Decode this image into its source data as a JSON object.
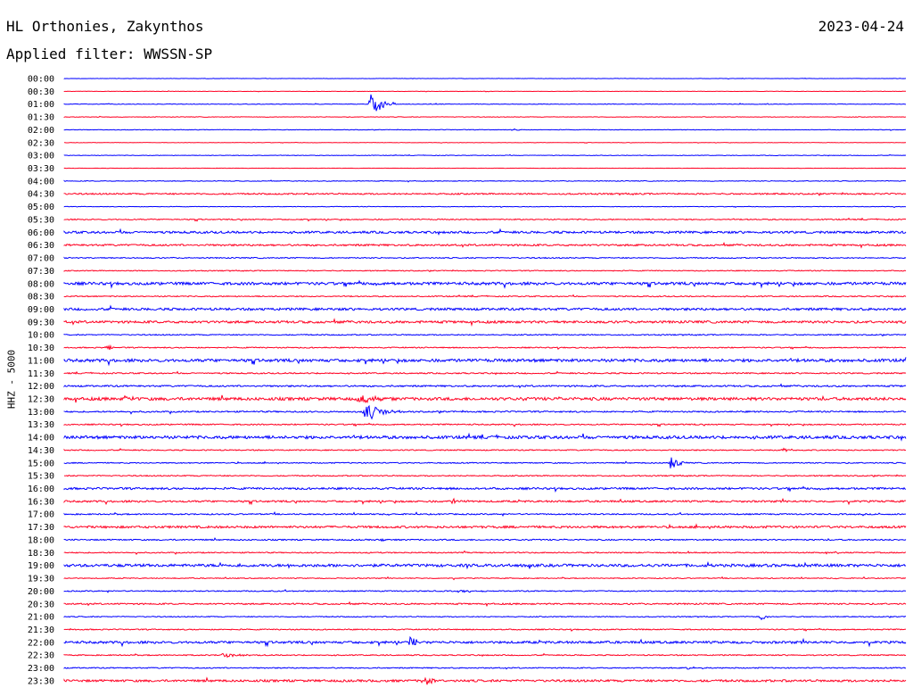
{
  "header": {
    "station": "HL Orthonies, Zakynthos",
    "date": "2023-04-24",
    "filter": "Applied filter: WWSSN-SP"
  },
  "channel_label": "HHZ - 5000",
  "colors": {
    "even_hour": "#0000ff",
    "half_hour": "#ff0022",
    "text": "#000000"
  },
  "chart_data": {
    "type": "line",
    "kind": "helicorder",
    "rows": [
      "00:00",
      "00:30",
      "01:00",
      "01:30",
      "02:00",
      "02:30",
      "03:00",
      "03:30",
      "04:00",
      "04:30",
      "05:00",
      "05:30",
      "06:00",
      "06:30",
      "07:00",
      "07:30",
      "08:00",
      "08:30",
      "09:00",
      "09:30",
      "10:00",
      "10:30",
      "11:00",
      "11:30",
      "12:00",
      "12:30",
      "13:00",
      "13:30",
      "14:00",
      "14:30",
      "15:00",
      "15:30",
      "16:00",
      "16:30",
      "17:00",
      "17:30",
      "18:00",
      "18:30",
      "19:00",
      "19:30",
      "20:00",
      "20:30",
      "21:00",
      "21:30",
      "22:00",
      "22:30",
      "23:00",
      "23:30"
    ],
    "row_minutes": 30,
    "noise_level": [
      0.2,
      0.2,
      0.3,
      0.3,
      0.3,
      0.2,
      0.3,
      0.2,
      0.4,
      0.8,
      0.3,
      0.6,
      1.2,
      1.0,
      0.6,
      0.5,
      1.5,
      0.6,
      1.3,
      1.3,
      0.6,
      0.6,
      1.6,
      0.7,
      0.9,
      1.6,
      0.8,
      0.7,
      1.6,
      0.6,
      0.6,
      0.6,
      1.1,
      1.0,
      0.7,
      1.2,
      0.7,
      0.6,
      1.5,
      0.5,
      0.6,
      0.8,
      0.5,
      0.6,
      1.3,
      0.6,
      0.6,
      1.2
    ],
    "events": [
      {
        "row": 2,
        "minute": 10.9,
        "amplitude": 22,
        "duration_min": 0.8
      },
      {
        "row": 2,
        "minute": 11.7,
        "amplitude": 3,
        "duration_min": 0.3
      },
      {
        "row": 4,
        "minute": 16.0,
        "amplitude": 2,
        "duration_min": 0.5
      },
      {
        "row": 21,
        "minute": 1.5,
        "amplitude": 6,
        "duration_min": 0.4
      },
      {
        "row": 25,
        "minute": 2.1,
        "amplitude": 6,
        "duration_min": 0.5
      },
      {
        "row": 25,
        "minute": 10.5,
        "amplitude": 7,
        "duration_min": 1.2
      },
      {
        "row": 26,
        "minute": 10.7,
        "amplitude": 12,
        "duration_min": 1.5
      },
      {
        "row": 29,
        "minute": 25.6,
        "amplitude": 3,
        "duration_min": 0.6
      },
      {
        "row": 30,
        "minute": 21.6,
        "amplitude": 10,
        "duration_min": 0.6
      },
      {
        "row": 33,
        "minute": 13.8,
        "amplitude": 3,
        "duration_min": 0.8
      },
      {
        "row": 36,
        "minute": 11.3,
        "amplitude": 2,
        "duration_min": 0.3
      },
      {
        "row": 40,
        "minute": 14.0,
        "amplitude": 2,
        "duration_min": 1.5
      },
      {
        "row": 42,
        "minute": 24.8,
        "amplitude": 7,
        "duration_min": 0.5
      },
      {
        "row": 44,
        "minute": 12.3,
        "amplitude": 13,
        "duration_min": 0.5
      },
      {
        "row": 45,
        "minute": 5.6,
        "amplitude": 3,
        "duration_min": 1.3
      },
      {
        "row": 46,
        "minute": 22.2,
        "amplitude": 1.5,
        "duration_min": 0.6
      },
      {
        "row": 47,
        "minute": 12.8,
        "amplitude": 8,
        "duration_min": 0.6
      }
    ]
  }
}
